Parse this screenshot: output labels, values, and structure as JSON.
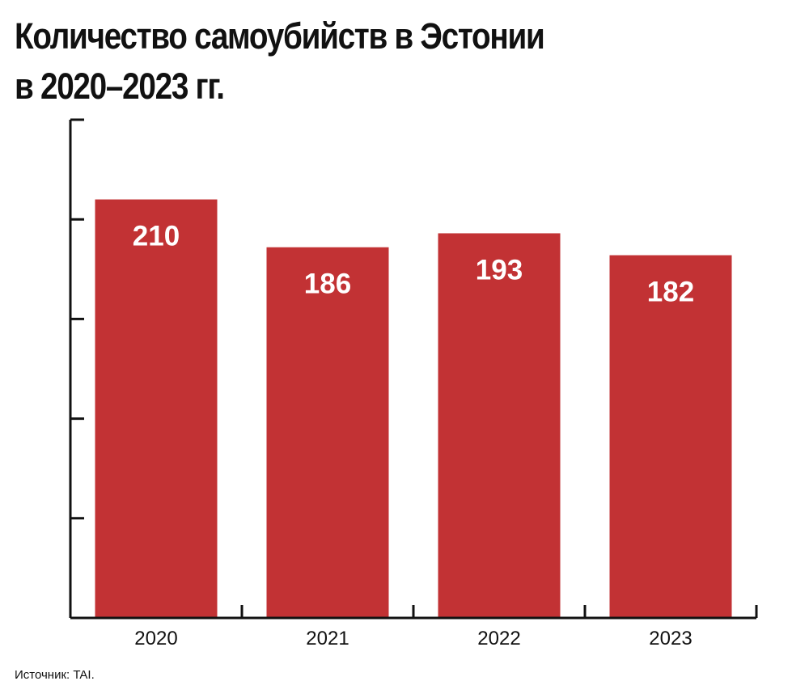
{
  "chart_data": {
    "type": "bar",
    "title": [
      "Количество самоубийств в Эстонии",
      "в 2020–2023 гг."
    ],
    "categories": [
      "2020",
      "2021",
      "2022",
      "2023"
    ],
    "values": [
      210,
      186,
      193,
      182
    ],
    "ylim": [
      0,
      250
    ],
    "grid": false,
    "bar_color": "#c23234",
    "label_color": "#ffffff"
  },
  "source": "Источник: TAI."
}
